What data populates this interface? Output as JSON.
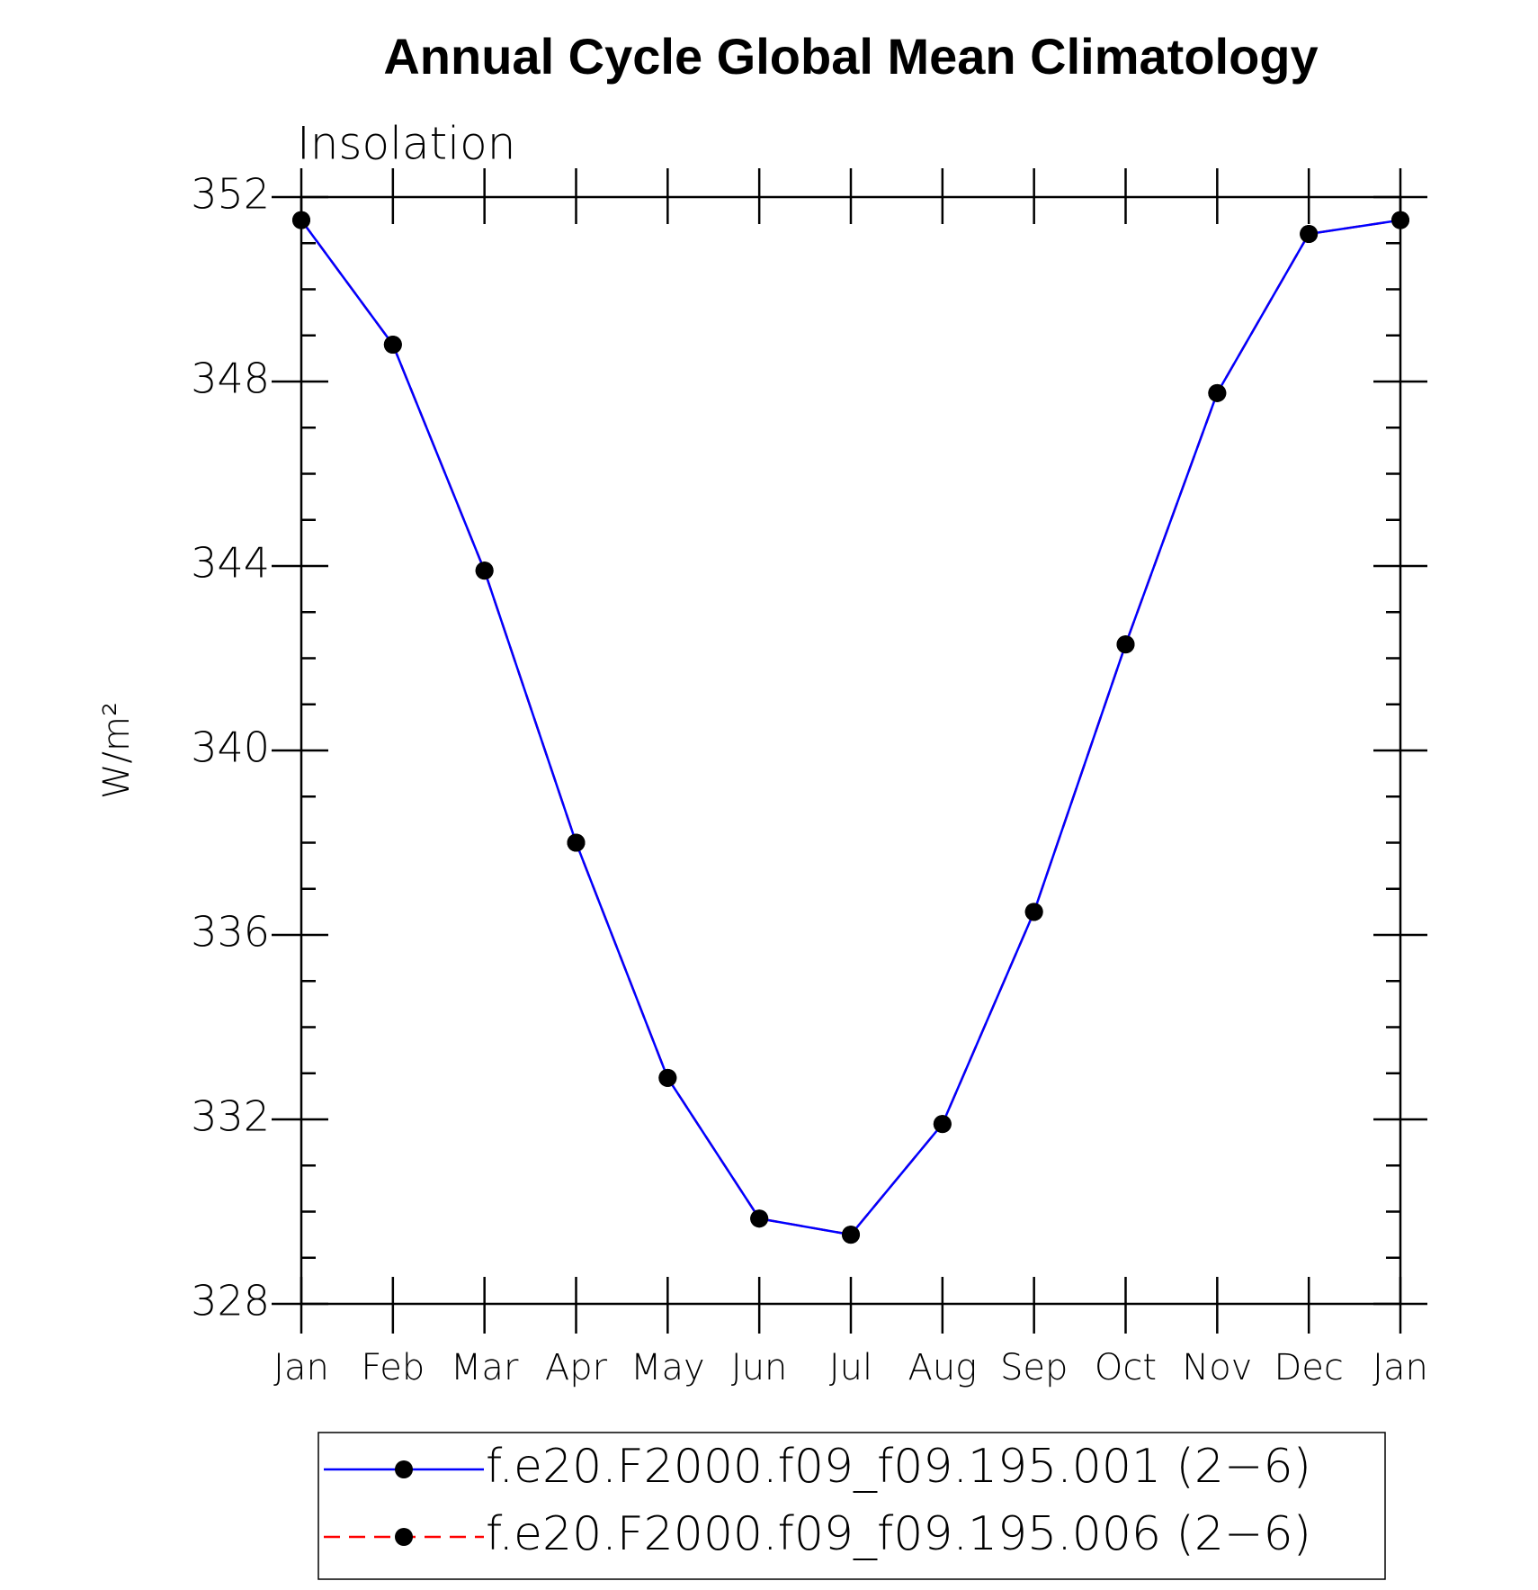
{
  "chart_data": {
    "type": "line",
    "title": "Annual Cycle Global Mean Climatology",
    "subtitle": "Insolation",
    "y_label": "W/m²",
    "categories": [
      "Jan",
      "Feb",
      "Mar",
      "Apr",
      "May",
      "Jun",
      "Jul",
      "Aug",
      "Sep",
      "Oct",
      "Nov",
      "Dec",
      "Jan"
    ],
    "series": [
      {
        "name": "f.e20.F2000.f09_f09.195.001 (2−6)",
        "color": "#0000ff",
        "dash": false,
        "values": [
          351.5,
          348.8,
          343.9,
          338.0,
          332.9,
          329.85,
          329.5,
          331.9,
          336.5,
          342.3,
          347.75,
          351.2,
          351.5
        ]
      },
      {
        "name": "f.e20.F2000.f09_f09.195.006 (2−6)",
        "color": "#ff0000",
        "dash": true,
        "values": [
          351.5,
          348.8,
          343.9,
          338.0,
          332.9,
          329.85,
          329.5,
          331.9,
          336.5,
          342.3,
          347.75,
          351.2,
          351.5
        ]
      }
    ],
    "ylim": [
      328,
      352
    ],
    "yticks": [
      328,
      332,
      336,
      340,
      344,
      348,
      352
    ],
    "grid": false
  }
}
